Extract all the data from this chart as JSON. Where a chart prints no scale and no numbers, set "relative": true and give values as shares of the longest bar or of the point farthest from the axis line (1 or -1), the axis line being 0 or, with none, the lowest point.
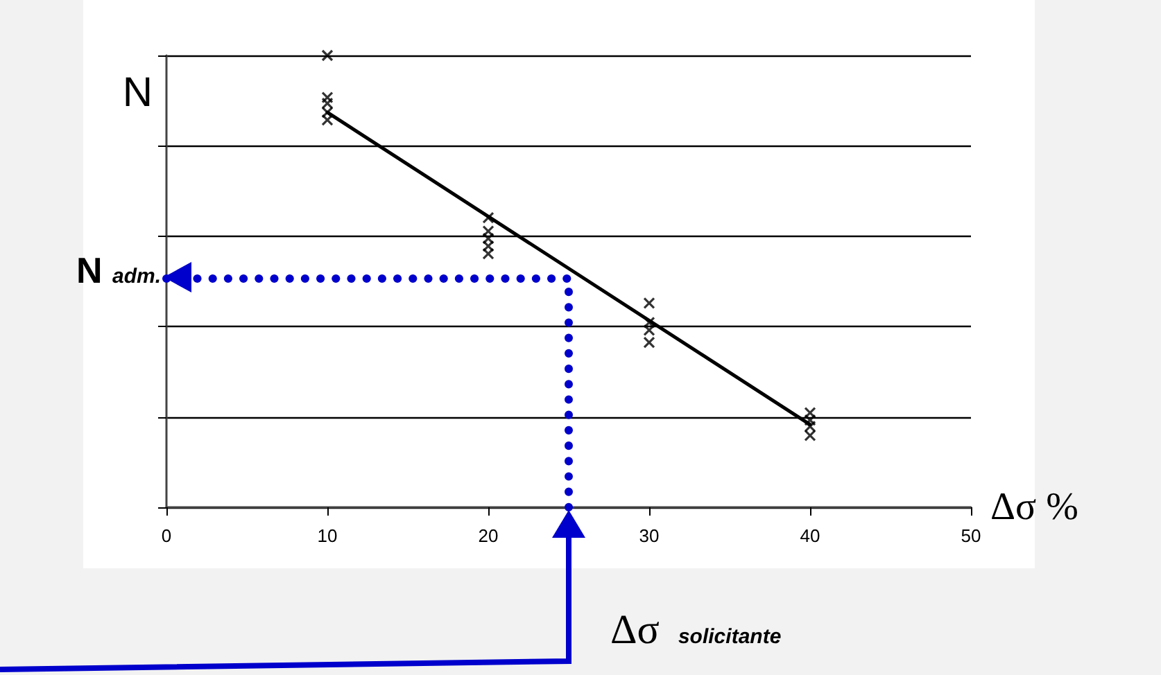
{
  "chart_data": {
    "type": "scatter",
    "relative": true,
    "xlabel": "Δσ %",
    "ylabel": "N",
    "xlim": [
      0,
      50
    ],
    "xticks": [
      0,
      10,
      20,
      30,
      40,
      50
    ],
    "grid": "y",
    "marker": "cross",
    "series": [
      {
        "color": "#000000",
        "x": [
          10,
          10,
          10,
          10,
          10,
          20,
          20,
          20,
          20,
          20,
          30,
          30,
          30,
          30,
          40,
          40,
          40,
          40
        ],
        "values": [
          1.0,
          0.907,
          0.894,
          0.874,
          0.857,
          0.641,
          0.611,
          0.595,
          0.578,
          0.561,
          0.452,
          0.409,
          0.392,
          0.365,
          0.209,
          0.193,
          0.179,
          0.159
        ]
      },
      {
        "type": "line",
        "color": "#000000",
        "marker": "none",
        "line_style": "solid",
        "x": [
          10,
          40
        ],
        "values": [
          0.874,
          0.183
        ]
      }
    ],
    "ref_lines": [
      {
        "axis": "y",
        "value": 0.508,
        "label": "N adm.",
        "color": "#0000cc",
        "line_style": "dotted"
      },
      {
        "axis": "x",
        "value": 25,
        "label": "Δσ solicitante",
        "color": "#0000cc",
        "line_style": "dotted"
      }
    ]
  }
}
